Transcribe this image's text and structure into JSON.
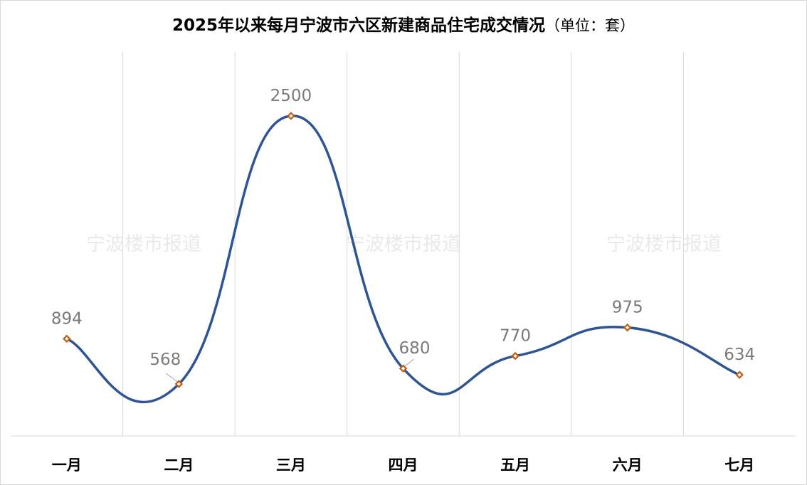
{
  "chart_data": {
    "type": "line",
    "title": "2025年以来每月宁波市六区新建商品住宅成交情况",
    "title_unit": "（单位：套）",
    "categories": [
      "一月",
      "二月",
      "三月",
      "四月",
      "五月",
      "六月",
      "七月"
    ],
    "series": [
      {
        "values": [
          894,
          568,
          2500,
          680,
          770,
          975,
          634
        ],
        "color": "#2f5496",
        "marker_color": "#c55a11"
      }
    ],
    "smooth": true,
    "ylim": [
      0,
      2500
    ],
    "grid": "vertical",
    "legend": "none",
    "watermark": "宁波楼市报道"
  }
}
